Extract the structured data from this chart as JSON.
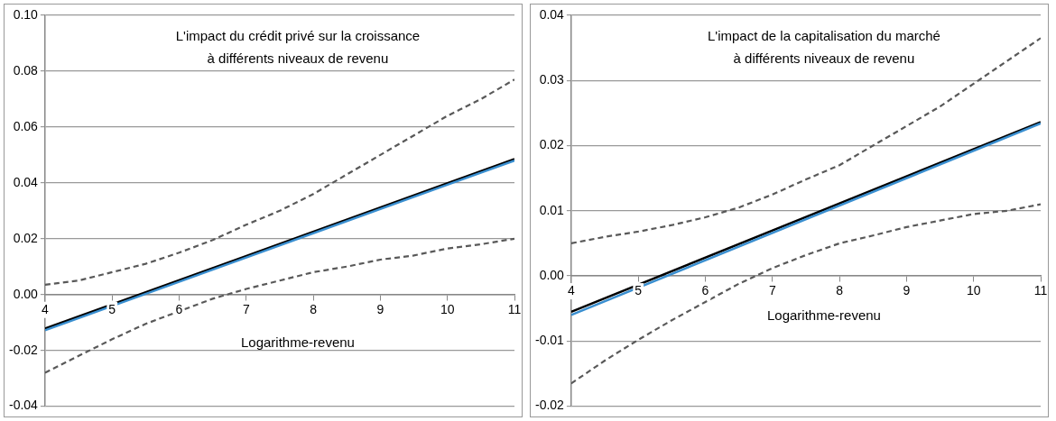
{
  "chart_data": [
    {
      "type": "line",
      "title": "L'impact du crédit privé sur la croissance\nà différents niveaux de revenu",
      "xlabel": "Logarithme-revenu",
      "xlim": [
        4,
        11
      ],
      "xticks": [
        4,
        5,
        6,
        7,
        8,
        9,
        10,
        11
      ],
      "ylim": [
        -0.04,
        0.1
      ],
      "yticks": [
        {
          "value": -0.04,
          "label": "-0.04"
        },
        {
          "value": -0.02,
          "label": "-0.02"
        },
        {
          "value": 0,
          "label": "0.00"
        },
        {
          "value": 0.02,
          "label": "0.02"
        },
        {
          "value": 0.04,
          "label": "0.04"
        },
        {
          "value": 0.06,
          "label": "0.06"
        },
        {
          "value": 0.08,
          "label": "0.08"
        },
        {
          "value": 0.1,
          "label": "0.10"
        }
      ],
      "grid": "y",
      "legend": false,
      "marker": "none",
      "series": [
        {
          "color": "#3a8fd0",
          "x": [
            4,
            11
          ],
          "values": [
            -0.0128,
            0.048
          ],
          "line_style": "solid"
        },
        {
          "color": "#000000",
          "x": [
            4,
            11
          ],
          "values": [
            -0.0122,
            0.0485
          ],
          "line_style": "solid"
        },
        {
          "color": "#595959",
          "x": [
            4,
            4.5,
            5,
            5.5,
            6,
            6.5,
            7,
            7.5,
            8,
            8.5,
            9,
            9.5,
            10,
            10.5,
            11
          ],
          "values": [
            0.0035,
            0.005,
            0.008,
            0.011,
            0.015,
            0.0195,
            0.025,
            0.03,
            0.036,
            0.043,
            0.05,
            0.057,
            0.064,
            0.07,
            0.077
          ],
          "line_style": "dashed"
        },
        {
          "color": "#595959",
          "x": [
            4,
            4.5,
            5,
            5.5,
            6,
            6.5,
            7,
            7.5,
            8,
            8.5,
            9,
            9.5,
            10,
            10.5,
            11
          ],
          "values": [
            -0.028,
            -0.022,
            -0.016,
            -0.0105,
            -0.006,
            -0.0015,
            0.002,
            0.005,
            0.008,
            0.01,
            0.0125,
            0.014,
            0.0165,
            0.018,
            0.02
          ],
          "line_style": "dashed"
        }
      ]
    },
    {
      "type": "line",
      "title": "L'impact de la capitalisation du marché\nà différents niveaux de revenu",
      "xlabel": "Logarithme-revenu",
      "xlim": [
        4,
        11
      ],
      "xticks": [
        4,
        5,
        6,
        7,
        8,
        9,
        10,
        11
      ],
      "ylim": [
        -0.02,
        0.04
      ],
      "yticks": [
        {
          "value": -0.02,
          "label": "-0.02"
        },
        {
          "value": -0.01,
          "label": "-0.01"
        },
        {
          "value": 0,
          "label": "0.00"
        },
        {
          "value": 0.01,
          "label": "0.01"
        },
        {
          "value": 0.02,
          "label": "0.02"
        },
        {
          "value": 0.03,
          "label": "0.03"
        },
        {
          "value": 0.04,
          "label": "0.04"
        }
      ],
      "grid": "y",
      "legend": false,
      "marker": "none",
      "series": [
        {
          "color": "#3a8fd0",
          "x": [
            4,
            11
          ],
          "values": [
            -0.006,
            0.0234
          ],
          "line_style": "solid"
        },
        {
          "color": "#000000",
          "x": [
            4,
            11
          ],
          "values": [
            -0.0055,
            0.0236
          ],
          "line_style": "solid"
        },
        {
          "color": "#595959",
          "x": [
            4,
            4.5,
            5,
            5.5,
            6,
            6.5,
            7,
            7.5,
            8,
            8.5,
            9,
            9.5,
            10,
            10.5,
            11
          ],
          "values": [
            0.005,
            0.006,
            0.0068,
            0.0078,
            0.009,
            0.0105,
            0.0125,
            0.0148,
            0.017,
            0.02,
            0.023,
            0.026,
            0.0295,
            0.033,
            0.0365
          ],
          "line_style": "dashed"
        },
        {
          "color": "#595959",
          "x": [
            4,
            4.5,
            5,
            5.5,
            6,
            6.5,
            7,
            7.5,
            8,
            8.5,
            9,
            9.5,
            10,
            10.5,
            11
          ],
          "values": [
            -0.0165,
            -0.013,
            -0.0098,
            -0.0068,
            -0.004,
            -0.0012,
            0.0012,
            0.0032,
            0.005,
            0.0062,
            0.0075,
            0.0085,
            0.0095,
            0.01,
            0.011
          ],
          "line_style": "dashed"
        }
      ]
    }
  ]
}
